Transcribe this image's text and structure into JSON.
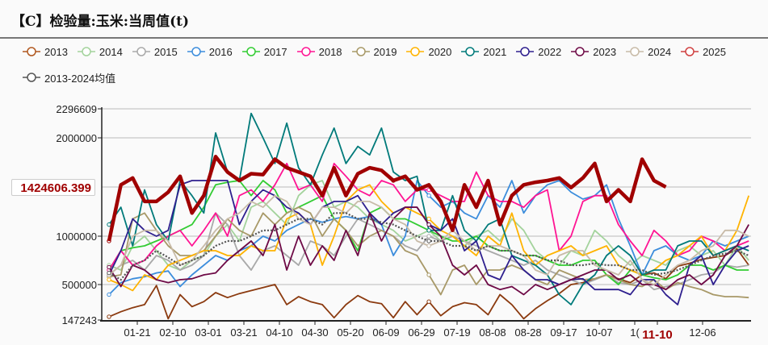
{
  "title": "【C】检验量:玉米:当周值(t)",
  "chart_data": {
    "type": "line",
    "title": "【C】检验量:玉米:当周值(t)",
    "y_ticks": [
      147243,
      500000,
      1000000,
      2000000,
      2296609
    ],
    "ylim": [
      147243,
      2296609
    ],
    "x_ticks": [
      "01-21",
      "02-10",
      "03-01",
      "03-21",
      "04-10",
      "04-30",
      "05-20",
      "06-09",
      "06-29",
      "07-19",
      "08-08",
      "08-28",
      "09-17",
      "10-07",
      "10-27",
      "11-10",
      "12-06"
    ],
    "x_ticks_display": [
      "01-21",
      "02-10",
      "03-01",
      "03-21",
      "04-10",
      "04-30",
      "05-20",
      "06-09",
      "06-29",
      "07-19",
      "08-08",
      "08-28",
      "09-17",
      "10-07",
      "1(",
      "11-10",
      "12-06"
    ],
    "highlight_x": "11-10",
    "crosshair_value": "1424606.399",
    "grid": "horizontal",
    "legend_placement": "top",
    "series": [
      {
        "name": "2013",
        "color": "#8b3a0f",
        "legend_color": "#b0581f",
        "values": [
          180000,
          230000,
          270000,
          300000,
          490000,
          160000,
          400000,
          280000,
          330000,
          420000,
          370000,
          410000,
          440000,
          470000,
          500000,
          300000,
          380000,
          330000,
          300000,
          170000,
          300000,
          390000,
          330000,
          310000,
          170000,
          330000,
          200000,
          330000,
          190000,
          280000,
          320000,
          300000,
          200000,
          400000,
          300000,
          160000,
          260000,
          340000,
          410000,
          500000,
          520000,
          560000,
          600000,
          560000,
          520000,
          600000,
          620000,
          560000,
          690000,
          720000,
          760000,
          780000,
          800000,
          870000,
          700000
        ]
      },
      {
        "name": "2014",
        "color": "#a3d39c",
        "values": [
          700000,
          650000,
          900000,
          1000000,
          850000,
          700000,
          650000,
          750000,
          800000,
          1000000,
          1100000,
          950000,
          1250000,
          1300000,
          1200000,
          1100000,
          1350000,
          1450000,
          1500000,
          1250000,
          1300000,
          1250000,
          1150000,
          1100000,
          1050000,
          950000,
          1000000,
          1050000,
          950000,
          1000000,
          900000,
          1000000,
          1050000,
          950000,
          1150000,
          1050000,
          850000,
          750000,
          700000,
          850000,
          800000,
          1050000,
          950000,
          800000,
          700000,
          800000,
          750000,
          700000,
          850000,
          900000,
          800000,
          850000,
          700000,
          900000,
          750000
        ]
      },
      {
        "name": "2015",
        "color": "#a9a9a9",
        "values": [
          600000,
          700000,
          750000,
          650000,
          800000,
          750000,
          650000,
          700000,
          800000,
          1200000,
          1100000,
          800000,
          650000,
          850000,
          900000,
          800000,
          700000,
          950000,
          900000,
          800000,
          1000000,
          1150000,
          1100000,
          1050000,
          1000000,
          900000,
          850000,
          1000000,
          950000,
          1000000,
          950000,
          900000,
          850000,
          800000,
          750000,
          700000,
          750000,
          650000,
          600000,
          550000,
          500000,
          550000,
          600000,
          520000,
          500000,
          550000,
          450000,
          480000,
          500000,
          550000,
          600000,
          620000,
          700000,
          680000,
          700000
        ]
      },
      {
        "name": "2016",
        "color": "#3c8ddc",
        "values": [
          400000,
          520000,
          560000,
          580000,
          620000,
          640000,
          480000,
          600000,
          700000,
          800000,
          750000,
          850000,
          900000,
          1000000,
          950000,
          1050000,
          1100000,
          1150000,
          1120000,
          1150000,
          1170000,
          1150000,
          1170000,
          1100000,
          800000,
          1000000,
          1500000,
          1350000,
          1250000,
          1300000,
          1200000,
          1150000,
          1350000,
          1250000,
          1500000,
          1200000,
          1350000,
          1450000,
          1500000,
          1380000,
          1320000,
          1350000,
          1450000,
          1150000,
          900000,
          600000,
          850000,
          900000,
          800000,
          750000,
          800000,
          950000,
          900000,
          950000,
          1000000
        ]
      },
      {
        "name": "2017",
        "color": "#33cc33",
        "values": [
          650000,
          850000,
          880000,
          900000,
          950000,
          1000000,
          1050000,
          1100000,
          1250000,
          1450000,
          1480000,
          1500000,
          1350000,
          1500000,
          1400000,
          1200000,
          1250000,
          1300000,
          1350000,
          1150000,
          1050000,
          850000,
          1200000,
          1250000,
          1150000,
          1150000,
          1100000,
          1050000,
          1000000,
          950000,
          950000,
          1000000,
          900000,
          850000,
          850000,
          800000,
          800000,
          750000,
          700000,
          700000,
          750000,
          750000,
          600000,
          500000,
          650000,
          600000,
          570000,
          550000,
          600000,
          700000,
          700000,
          650000,
          700000,
          650000,
          650000
        ]
      },
      {
        "name": "2018",
        "color": "#ff1493",
        "values": [
          650000,
          850000,
          700000,
          750000,
          900000,
          1000000,
          1050000,
          900000,
          1050000,
          1200000,
          1000000,
          1350000,
          1400000,
          1300000,
          1450000,
          1700000,
          1400000,
          1450000,
          1300000,
          1700000,
          1550000,
          1400000,
          1350000,
          1500000,
          1450000,
          1300000,
          1400000,
          1400000,
          1350000,
          1300000,
          1300000,
          1600000,
          1350000,
          1300000,
          1300000,
          1250000,
          1350000,
          1400000,
          850000,
          1000000,
          1300000,
          1350000,
          1350000,
          1100000,
          950000,
          800000,
          1050000,
          950000,
          800000,
          850000,
          1000000,
          950000,
          850000,
          900000,
          950000
        ]
      },
      {
        "name": "2019",
        "color": "#a89968",
        "values": [
          580000,
          600000,
          1150000,
          1200000,
          1050000,
          900000,
          800000,
          800000,
          850000,
          1000000,
          1150000,
          1050000,
          1000000,
          1200000,
          1100000,
          1200000,
          1250000,
          1200000,
          1000000,
          1150000,
          1050000,
          900000,
          1000000,
          1050000,
          1000000,
          850000,
          800000,
          600000,
          400000,
          650000,
          700000,
          500000,
          650000,
          650000,
          700000,
          650000,
          550000,
          500000,
          650000,
          600000,
          550000,
          560000,
          600000,
          550000,
          500000,
          480000,
          550000,
          450000,
          520000,
          480000,
          450000,
          400000,
          380000,
          380000,
          370000
        ]
      },
      {
        "name": "2020",
        "color": "#ffb300",
        "values": [
          550000,
          500000,
          440000,
          600000,
          550000,
          700000,
          750000,
          800000,
          850000,
          850000,
          800000,
          800000,
          900000,
          850000,
          850000,
          1150000,
          1200000,
          1100000,
          700000,
          1000000,
          1300000,
          1400000,
          1450000,
          1300000,
          1200000,
          1250000,
          1200000,
          1150000,
          1050000,
          1000000,
          900000,
          800000,
          1000000,
          900000,
          1200000,
          850000,
          700000,
          800000,
          850000,
          900000,
          800000,
          850000,
          900000,
          700000,
          650000,
          600000,
          650000,
          750000,
          800000,
          900000,
          1000000,
          800000,
          850000,
          1050000,
          1350000
        ]
      },
      {
        "name": "2021",
        "color": "#007a7a",
        "values": [
          1100000,
          1250000,
          900000,
          1400000,
          1100000,
          950000,
          1500000,
          1350000,
          1200000,
          2050000,
          1600000,
          1500000,
          2250000,
          2000000,
          1700000,
          2150000,
          1650000,
          1450000,
          1800000,
          2100000,
          1700000,
          1900000,
          1800000,
          2100000,
          1600000,
          1500000,
          1550000,
          1050000,
          1050000,
          1350000,
          1050000,
          950000,
          1100000,
          1150000,
          800000,
          750000,
          700000,
          600000,
          400000,
          300000,
          500000,
          600000,
          800000,
          900000,
          800000,
          600000,
          650000,
          650000,
          900000,
          950000,
          950000,
          800000,
          850000,
          900000,
          850000
        ]
      },
      {
        "name": "2022",
        "color": "#2e1f8e",
        "values": [
          600000,
          850000,
          1150000,
          1050000,
          1000000,
          1050000,
          1450000,
          1500000,
          1500000,
          1500000,
          1500000,
          1100000,
          1300000,
          1400000,
          1350000,
          1250000,
          1200000,
          1100000,
          1250000,
          1300000,
          1300000,
          1350000,
          1200000,
          1100000,
          1200000,
          1250000,
          1250000,
          1100000,
          1050000,
          1150000,
          850000,
          950000,
          600000,
          550000,
          800000,
          650000,
          550000,
          550000,
          500000,
          550000,
          560000,
          450000,
          450000,
          450000,
          400000,
          550000,
          550000,
          400000,
          300000,
          700000,
          800000,
          500000,
          700000,
          850000,
          900000
        ]
      },
      {
        "name": "2023",
        "color": "#6e0a46",
        "values": [
          680000,
          480000,
          700000,
          650000,
          550000,
          520000,
          550000,
          560000,
          600000,
          620000,
          750000,
          850000,
          950000,
          800000,
          1100000,
          650000,
          1000000,
          700000,
          900000,
          750000,
          1050000,
          800000,
          1200000,
          950000,
          1150000,
          1250000,
          1250000,
          1100000,
          1000000,
          700000,
          600000,
          700000,
          500000,
          450000,
          480000,
          400000,
          500000,
          450000,
          500000,
          550000,
          600000,
          650000,
          650000,
          550000,
          600000,
          500000,
          500000,
          450000,
          550000,
          600000,
          500000,
          600000,
          800000,
          900000,
          1100000
        ]
      },
      {
        "name": "2024",
        "color": "#c8bba8",
        "values": [
          600000,
          700000,
          1000000,
          1050000,
          1050000,
          950000,
          700000,
          750000,
          900000,
          1050000,
          1150000,
          1200000,
          1300000,
          1250000,
          1350000,
          1300000,
          1150000,
          1100000,
          1250000,
          1250000,
          1200000,
          1300000,
          1300000,
          1250000,
          1150000,
          1100000,
          950000,
          900000,
          950000,
          1050000,
          950000,
          850000,
          900000,
          900000,
          850000,
          800000,
          650000,
          600000,
          800000,
          850000,
          850000,
          700000,
          650000,
          600000,
          750000,
          550000,
          500000,
          600000,
          700000,
          750000,
          850000,
          900000,
          1050000,
          1050000,
          1000000
        ]
      },
      {
        "name": "2025",
        "color": "#a00000",
        "legend_color": "#d04040",
        "values": [
          950000,
          1450000,
          1530000,
          1300000,
          1300000,
          1380000,
          1550000,
          1200000,
          1350000,
          1780000,
          1600000,
          1500000,
          1580000,
          1570000,
          1750000,
          1650000,
          1600000,
          1550000,
          1350000,
          1650000,
          1350000,
          1580000,
          1650000,
          1620000,
          1500000,
          1550000,
          1400000,
          1450000,
          1300000,
          1050000,
          1450000,
          1250000,
          1500000,
          1100000,
          1350000,
          1450000,
          1480000,
          1500000,
          1530000,
          1420000,
          1530000,
          1700000,
          1300000,
          1400000,
          1300000,
          1750000,
          1500000,
          1424606.399
        ]
      },
      {
        "name": "2013-2024均值",
        "color": "#555555",
        "dotted": true,
        "values": [
          620000,
          550000,
          700000,
          750000,
          850000,
          780000,
          700000,
          750000,
          800000,
          900000,
          950000,
          950000,
          1000000,
          1050000,
          1050000,
          1100000,
          1150000,
          1150000,
          1100000,
          1200000,
          1200000,
          1150000,
          1150000,
          1120000,
          1100000,
          1050000,
          1000000,
          950000,
          950000,
          900000,
          900000,
          850000,
          900000,
          850000,
          850000,
          800000,
          800000,
          750000,
          750000,
          700000,
          700000,
          720000,
          700000,
          700000,
          650000,
          650000,
          600000,
          620000,
          650000,
          700000,
          750000,
          800000,
          820000,
          850000,
          800000
        ]
      }
    ]
  }
}
